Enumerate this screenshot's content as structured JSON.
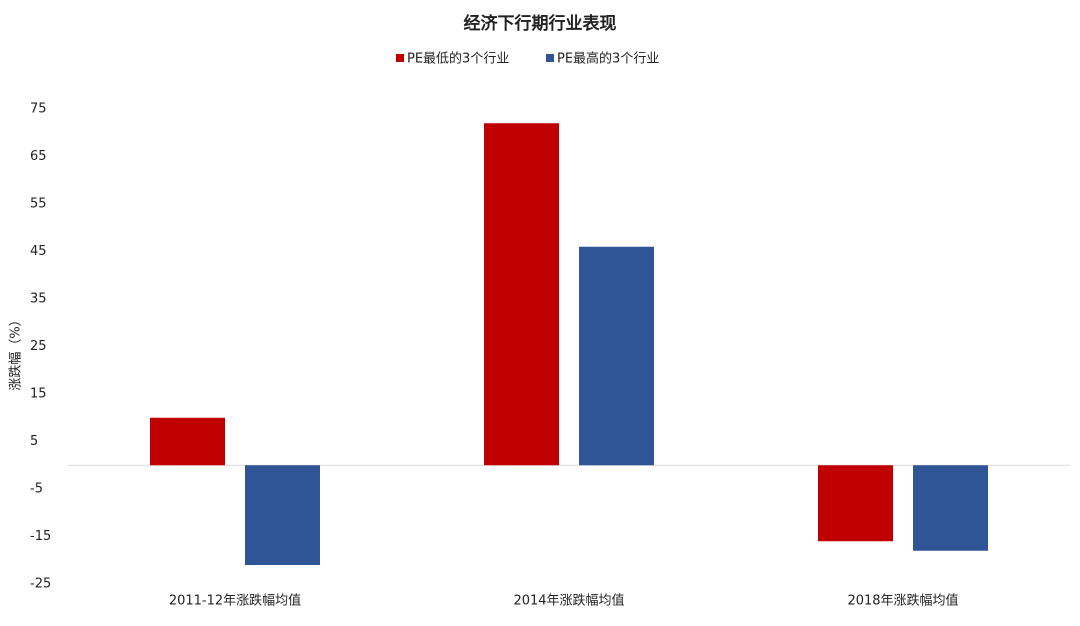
{
  "chart_data": {
    "type": "bar",
    "title": "经济下行期行业表现",
    "y_label": "涨跌幅（%）",
    "categories": [
      "2011-12年涨跌幅均值",
      "2014年涨跌幅均值",
      "2018年涨跌幅均值"
    ],
    "series": [
      {
        "name": "PE最低的3个行业",
        "color": "#c00000",
        "values": [
          10,
          72,
          -16
        ]
      },
      {
        "name": "PE最高的3个行业",
        "color": "#2f5597",
        "values": [
          -21,
          46,
          -18
        ]
      }
    ],
    "ylim": [
      -25,
      75
    ],
    "yticks": [
      -25,
      -15,
      -5,
      5,
      15,
      25,
      35,
      45,
      55,
      65,
      75
    ],
    "legend": "top"
  }
}
